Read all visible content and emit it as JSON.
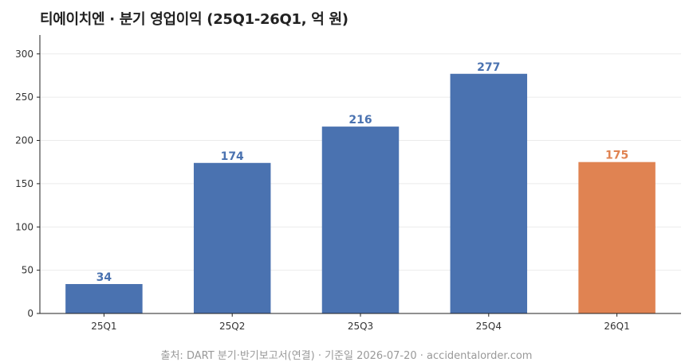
{
  "title": "티에이치엔 · 분기 영업이익 (25Q1-26Q1, 억 원)",
  "source": "출처: DART 분기·반기보고서(연결) · 기준일 2026-07-20 · accidentalorder.com",
  "colors": {
    "actual": "#4a72b0",
    "highlight": "#e08352",
    "grid": "#ebebeb",
    "axis": "#222222"
  },
  "chart_data": {
    "type": "bar",
    "title": "티에이치엔 · 분기 영업이익 (25Q1-26Q1, 억 원)",
    "xlabel": "",
    "ylabel": "",
    "categories": [
      "25Q1",
      "25Q2",
      "25Q3",
      "25Q4",
      "26Q1"
    ],
    "values": [
      34,
      174,
      216,
      277,
      175
    ],
    "data_labels": [
      "34",
      "174",
      "216",
      "277",
      "175"
    ],
    "highlighted_category": "26Q1",
    "ylim": [
      0,
      320
    ],
    "yticks": [
      0,
      50,
      100,
      150,
      200,
      250,
      300
    ],
    "grid": "horizontal",
    "legend": "none"
  }
}
